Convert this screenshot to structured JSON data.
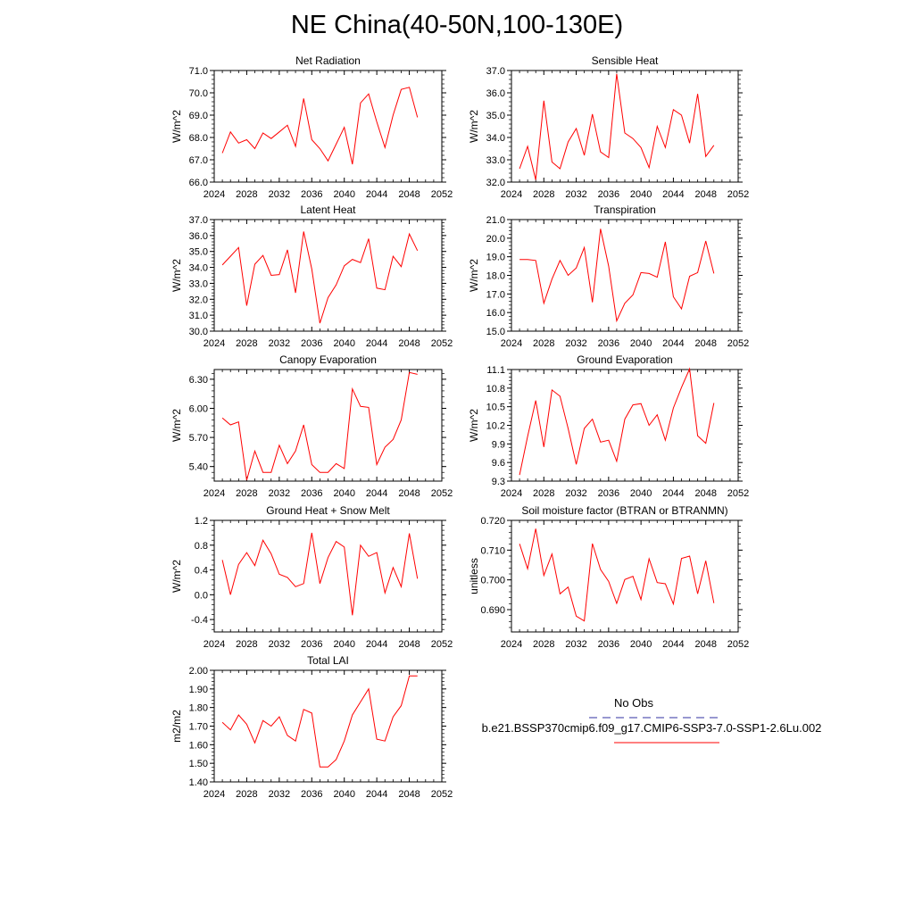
{
  "page": {
    "title": "NE China(40-50N,100-130E)"
  },
  "legend": {
    "obs_label": "No Obs",
    "obs_color": "#3030a0",
    "model_label": "b.e21.BSSP370cmip6.f09_g17.CMIP6-SSP3-7.0-SSP1-2.6Lu.002",
    "model_color": "#ff0000"
  },
  "chart_data": [
    {
      "type": "line",
      "title": "Net Radiation",
      "ylabel": "W/m^2",
      "xlim": [
        2024,
        2052
      ],
      "xticks": [
        2024,
        2028,
        2032,
        2036,
        2040,
        2044,
        2048,
        2052
      ],
      "xticklabels": [
        "2024",
        "2028",
        "2032",
        "2036",
        "2040",
        "2044",
        "2048",
        "2052"
      ],
      "ylim": [
        66.0,
        71.0
      ],
      "yticks": [
        66.0,
        67.0,
        68.0,
        69.0,
        70.0,
        71.0
      ],
      "yticklabels": [
        "66.0",
        "67.0",
        "68.0",
        "69.0",
        "70.0",
        "71.0"
      ],
      "x": [
        2025,
        2026,
        2027,
        2028,
        2029,
        2030,
        2031,
        2032,
        2033,
        2034,
        2035,
        2036,
        2037,
        2038,
        2039,
        2040,
        2041,
        2042,
        2043,
        2044,
        2045,
        2046,
        2047,
        2048,
        2049
      ],
      "y": [
        67.3,
        68.25,
        67.75,
        67.9,
        67.5,
        68.2,
        67.95,
        68.25,
        68.55,
        67.6,
        69.75,
        67.9,
        67.5,
        66.95,
        67.7,
        68.45,
        66.8,
        69.55,
        69.95,
        68.7,
        67.55,
        69.0,
        70.15,
        70.25,
        68.9
      ]
    },
    {
      "type": "line",
      "title": "Sensible Heat",
      "ylabel": "W/m^2",
      "xlim": [
        2024,
        2052
      ],
      "xticks": [
        2024,
        2028,
        2032,
        2036,
        2040,
        2044,
        2048,
        2052
      ],
      "xticklabels": [
        "2024",
        "2028",
        "2032",
        "2036",
        "2040",
        "2044",
        "2048",
        "2052"
      ],
      "ylim": [
        32.0,
        37.0
      ],
      "yticks": [
        32.0,
        33.0,
        34.0,
        35.0,
        36.0,
        37.0
      ],
      "yticklabels": [
        "32.0",
        "33.0",
        "34.0",
        "35.0",
        "36.0",
        "37.0"
      ],
      "x": [
        2025,
        2026,
        2027,
        2028,
        2029,
        2030,
        2031,
        2032,
        2033,
        2034,
        2035,
        2036,
        2037,
        2038,
        2039,
        2040,
        2041,
        2042,
        2043,
        2044,
        2045,
        2046,
        2047,
        2048,
        2049
      ],
      "y": [
        32.6,
        33.6,
        32.1,
        35.65,
        32.9,
        32.6,
        33.8,
        34.4,
        33.2,
        35.05,
        33.35,
        33.1,
        36.85,
        34.2,
        33.95,
        33.55,
        32.65,
        34.5,
        33.55,
        35.25,
        35.0,
        33.75,
        35.95,
        33.15,
        33.65
      ]
    },
    {
      "type": "line",
      "title": "Latent Heat",
      "ylabel": "W/m^2",
      "xlim": [
        2024,
        2052
      ],
      "xticks": [
        2024,
        2028,
        2032,
        2036,
        2040,
        2044,
        2048,
        2052
      ],
      "xticklabels": [
        "2024",
        "2028",
        "2032",
        "2036",
        "2040",
        "2044",
        "2048",
        "2052"
      ],
      "ylim": [
        30.0,
        37.0
      ],
      "yticks": [
        30.0,
        31.0,
        32.0,
        33.0,
        34.0,
        35.0,
        36.0,
        37.0
      ],
      "yticklabels": [
        "30.0",
        "31.0",
        "32.0",
        "33.0",
        "34.0",
        "35.0",
        "36.0",
        "37.0"
      ],
      "x": [
        2025,
        2026,
        2027,
        2028,
        2029,
        2030,
        2031,
        2032,
        2033,
        2034,
        2035,
        2036,
        2037,
        2038,
        2039,
        2040,
        2041,
        2042,
        2043,
        2044,
        2045,
        2046,
        2047,
        2048,
        2049
      ],
      "y": [
        34.15,
        34.7,
        35.25,
        31.6,
        34.2,
        34.75,
        33.5,
        33.55,
        35.1,
        32.4,
        36.25,
        33.9,
        30.5,
        32.1,
        32.9,
        34.1,
        34.5,
        34.3,
        35.8,
        32.7,
        32.6,
        34.7,
        34.05,
        36.1,
        35.05
      ]
    },
    {
      "type": "line",
      "title": "Transpiration",
      "ylabel": "W/m^2",
      "xlim": [
        2024,
        2052
      ],
      "xticks": [
        2024,
        2028,
        2032,
        2036,
        2040,
        2044,
        2048,
        2052
      ],
      "xticklabels": [
        "2024",
        "2028",
        "2032",
        "2036",
        "2040",
        "2044",
        "2048",
        "2052"
      ],
      "ylim": [
        15.0,
        21.0
      ],
      "yticks": [
        15.0,
        16.0,
        17.0,
        18.0,
        19.0,
        20.0,
        21.0
      ],
      "yticklabels": [
        "15.0",
        "16.0",
        "17.0",
        "18.0",
        "19.0",
        "20.0",
        "21.0"
      ],
      "x": [
        2025,
        2026,
        2027,
        2028,
        2029,
        2030,
        2031,
        2032,
        2033,
        2034,
        2035,
        2036,
        2037,
        2038,
        2039,
        2040,
        2041,
        2042,
        2043,
        2044,
        2045,
        2046,
        2047,
        2048,
        2049
      ],
      "y": [
        18.85,
        18.85,
        18.8,
        16.5,
        17.8,
        18.8,
        18.0,
        18.4,
        19.5,
        16.55,
        20.5,
        18.5,
        15.55,
        16.5,
        16.95,
        18.15,
        18.1,
        17.9,
        19.8,
        16.85,
        16.2,
        17.95,
        18.15,
        19.85,
        18.1
      ]
    },
    {
      "type": "line",
      "title": "Canopy Evaporation",
      "ylabel": "W/m^2",
      "xlim": [
        2024,
        2052
      ],
      "xticks": [
        2024,
        2028,
        2032,
        2036,
        2040,
        2044,
        2048,
        2052
      ],
      "xticklabels": [
        "2024",
        "2028",
        "2032",
        "2036",
        "2040",
        "2044",
        "2048",
        "2052"
      ],
      "ylim": [
        5.25,
        6.4
      ],
      "yticks": [
        5.4,
        5.7,
        6.0,
        6.3
      ],
      "yticklabels": [
        "5.40",
        "5.70",
        "6.00",
        "6.30"
      ],
      "x": [
        2025,
        2026,
        2027,
        2028,
        2029,
        2030,
        2031,
        2032,
        2033,
        2034,
        2035,
        2036,
        2037,
        2038,
        2039,
        2040,
        2041,
        2042,
        2043,
        2044,
        2045,
        2046,
        2047,
        2048,
        2049
      ],
      "y": [
        5.9,
        5.83,
        5.86,
        5.26,
        5.56,
        5.34,
        5.34,
        5.62,
        5.43,
        5.56,
        5.83,
        5.42,
        5.34,
        5.34,
        5.43,
        5.38,
        6.2,
        6.02,
        6.01,
        5.42,
        5.6,
        5.68,
        5.88,
        6.37,
        6.35
      ]
    },
    {
      "type": "line",
      "title": "Ground Evaporation",
      "ylabel": "W/m^2",
      "xlim": [
        2024,
        2052
      ],
      "xticks": [
        2024,
        2028,
        2032,
        2036,
        2040,
        2044,
        2048,
        2052
      ],
      "xticklabels": [
        "2024",
        "2028",
        "2032",
        "2036",
        "2040",
        "2044",
        "2048",
        "2052"
      ],
      "ylim": [
        9.3,
        11.1
      ],
      "yticks": [
        9.3,
        9.6,
        9.9,
        10.2,
        10.5,
        10.8,
        11.1
      ],
      "yticklabels": [
        "9.3",
        "9.6",
        "9.9",
        "10.2",
        "10.5",
        "10.8",
        "11.1"
      ],
      "x": [
        2025,
        2026,
        2027,
        2028,
        2029,
        2030,
        2031,
        2032,
        2033,
        2034,
        2035,
        2036,
        2037,
        2038,
        2039,
        2040,
        2041,
        2042,
        2043,
        2044,
        2045,
        2046,
        2047,
        2048,
        2049
      ],
      "y": [
        9.4,
        10.02,
        10.6,
        9.85,
        10.77,
        10.67,
        10.15,
        9.57,
        10.15,
        10.3,
        9.93,
        9.96,
        9.62,
        10.3,
        10.53,
        10.55,
        10.2,
        10.37,
        9.96,
        10.48,
        10.81,
        11.11,
        10.03,
        9.91,
        10.56
      ]
    },
    {
      "type": "line",
      "title": "Ground Heat + Snow Melt",
      "ylabel": "W/m^2",
      "xlim": [
        2024,
        2052
      ],
      "xticks": [
        2024,
        2028,
        2032,
        2036,
        2040,
        2044,
        2048,
        2052
      ],
      "xticklabels": [
        "2024",
        "2028",
        "2032",
        "2036",
        "2040",
        "2044",
        "2048",
        "2052"
      ],
      "ylim": [
        -0.6,
        1.2
      ],
      "yticks": [
        -0.4,
        0.0,
        0.4,
        0.8,
        1.2
      ],
      "yticklabels": [
        "-0.4",
        "0.0",
        "0.4",
        "0.8",
        "1.2"
      ],
      "x": [
        2025,
        2026,
        2027,
        2028,
        2029,
        2030,
        2031,
        2032,
        2033,
        2034,
        2035,
        2036,
        2037,
        2038,
        2039,
        2040,
        2041,
        2042,
        2043,
        2044,
        2045,
        2046,
        2047,
        2048,
        2049
      ],
      "y": [
        0.56,
        0.0,
        0.49,
        0.68,
        0.47,
        0.88,
        0.66,
        0.33,
        0.28,
        0.13,
        0.18,
        1.0,
        0.18,
        0.6,
        0.86,
        0.77,
        -0.33,
        0.8,
        0.62,
        0.68,
        0.03,
        0.44,
        0.13,
        0.99,
        0.26
      ]
    },
    {
      "type": "line",
      "title": "Soil moisture factor (BTRAN or BTRANMN)",
      "ylabel": "unitless",
      "xlim": [
        2024,
        2052
      ],
      "xticks": [
        2024,
        2028,
        2032,
        2036,
        2040,
        2044,
        2048,
        2052
      ],
      "xticklabels": [
        "2024",
        "2028",
        "2032",
        "2036",
        "2040",
        "2044",
        "2048",
        "2052"
      ],
      "ylim": [
        0.6825,
        0.72
      ],
      "yticks": [
        0.69,
        0.7,
        0.71,
        0.72
      ],
      "yticklabels": [
        "0.690",
        "0.700",
        "0.710",
        "0.720"
      ],
      "x": [
        2025,
        2026,
        2027,
        2028,
        2029,
        2030,
        2031,
        2032,
        2033,
        2034,
        2035,
        2036,
        2037,
        2038,
        2039,
        2040,
        2041,
        2042,
        2043,
        2044,
        2045,
        2046,
        2047,
        2048,
        2049
      ],
      "y": [
        0.7121,
        0.7037,
        0.7172,
        0.7015,
        0.7087,
        0.6953,
        0.6976,
        0.6878,
        0.6862,
        0.7122,
        0.7035,
        0.6995,
        0.6921,
        0.7001,
        0.7012,
        0.6934,
        0.7071,
        0.6991,
        0.6987,
        0.6919,
        0.7072,
        0.708,
        0.6953,
        0.7064,
        0.6922
      ]
    },
    {
      "type": "line",
      "title": "Total LAI",
      "ylabel": "m2/m2",
      "xlim": [
        2024,
        2052
      ],
      "xticks": [
        2024,
        2028,
        2032,
        2036,
        2040,
        2044,
        2048,
        2052
      ],
      "xticklabels": [
        "2024",
        "2028",
        "2032",
        "2036",
        "2040",
        "2044",
        "2048",
        "2052"
      ],
      "ylim": [
        1.4,
        2.0
      ],
      "yticks": [
        1.4,
        1.5,
        1.6,
        1.7,
        1.8,
        1.9,
        2.0
      ],
      "yticklabels": [
        "1.40",
        "1.50",
        "1.60",
        "1.70",
        "1.80",
        "1.90",
        "2.00"
      ],
      "x": [
        2025,
        2026,
        2027,
        2028,
        2029,
        2030,
        2031,
        2032,
        2033,
        2034,
        2035,
        2036,
        2037,
        2038,
        2039,
        2040,
        2041,
        2042,
        2043,
        2044,
        2045,
        2046,
        2047,
        2048,
        2049
      ],
      "y": [
        1.72,
        1.68,
        1.76,
        1.71,
        1.61,
        1.73,
        1.7,
        1.75,
        1.65,
        1.62,
        1.79,
        1.77,
        1.48,
        1.48,
        1.52,
        1.62,
        1.76,
        1.83,
        1.9,
        1.63,
        1.62,
        1.75,
        1.81,
        1.97,
        1.97
      ]
    }
  ]
}
